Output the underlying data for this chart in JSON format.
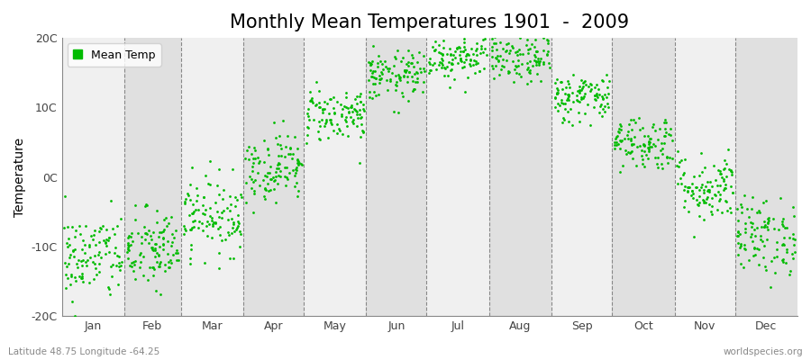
{
  "title": "Monthly Mean Temperatures 1901  -  2009",
  "ylabel": "Temperature",
  "ylim": [
    -20,
    20
  ],
  "yticks": [
    -20,
    -10,
    0,
    10,
    20
  ],
  "ytick_labels": [
    "-20C",
    "-10C",
    "0C",
    "10C",
    "20C"
  ],
  "months": [
    "Jan",
    "Feb",
    "Mar",
    "Apr",
    "May",
    "Jun",
    "Jul",
    "Aug",
    "Sep",
    "Oct",
    "Nov",
    "Dec"
  ],
  "month_days": [
    31,
    28,
    31,
    30,
    31,
    30,
    31,
    31,
    30,
    31,
    30,
    31
  ],
  "mean_temps": [
    -11.5,
    -10.5,
    -5.5,
    1.5,
    9.0,
    14.5,
    17.5,
    17.0,
    11.5,
    5.0,
    -1.5,
    -8.5
  ],
  "std_temps": [
    3.2,
    3.0,
    2.8,
    2.5,
    2.0,
    1.8,
    1.8,
    1.8,
    1.8,
    2.0,
    2.5,
    2.8
  ],
  "n_years": 109,
  "dot_color": "#00BB00",
  "dot_size": 4,
  "bg_color_light": "#F0F0F0",
  "bg_color_dark": "#E0E0E0",
  "grid_color": "#888888",
  "title_fontsize": 15,
  "axis_fontsize": 10,
  "tick_fontsize": 9,
  "legend_label": "Mean Temp",
  "subtitle_left": "Latitude 48.75 Longitude -64.25",
  "subtitle_right": "worldspecies.org"
}
